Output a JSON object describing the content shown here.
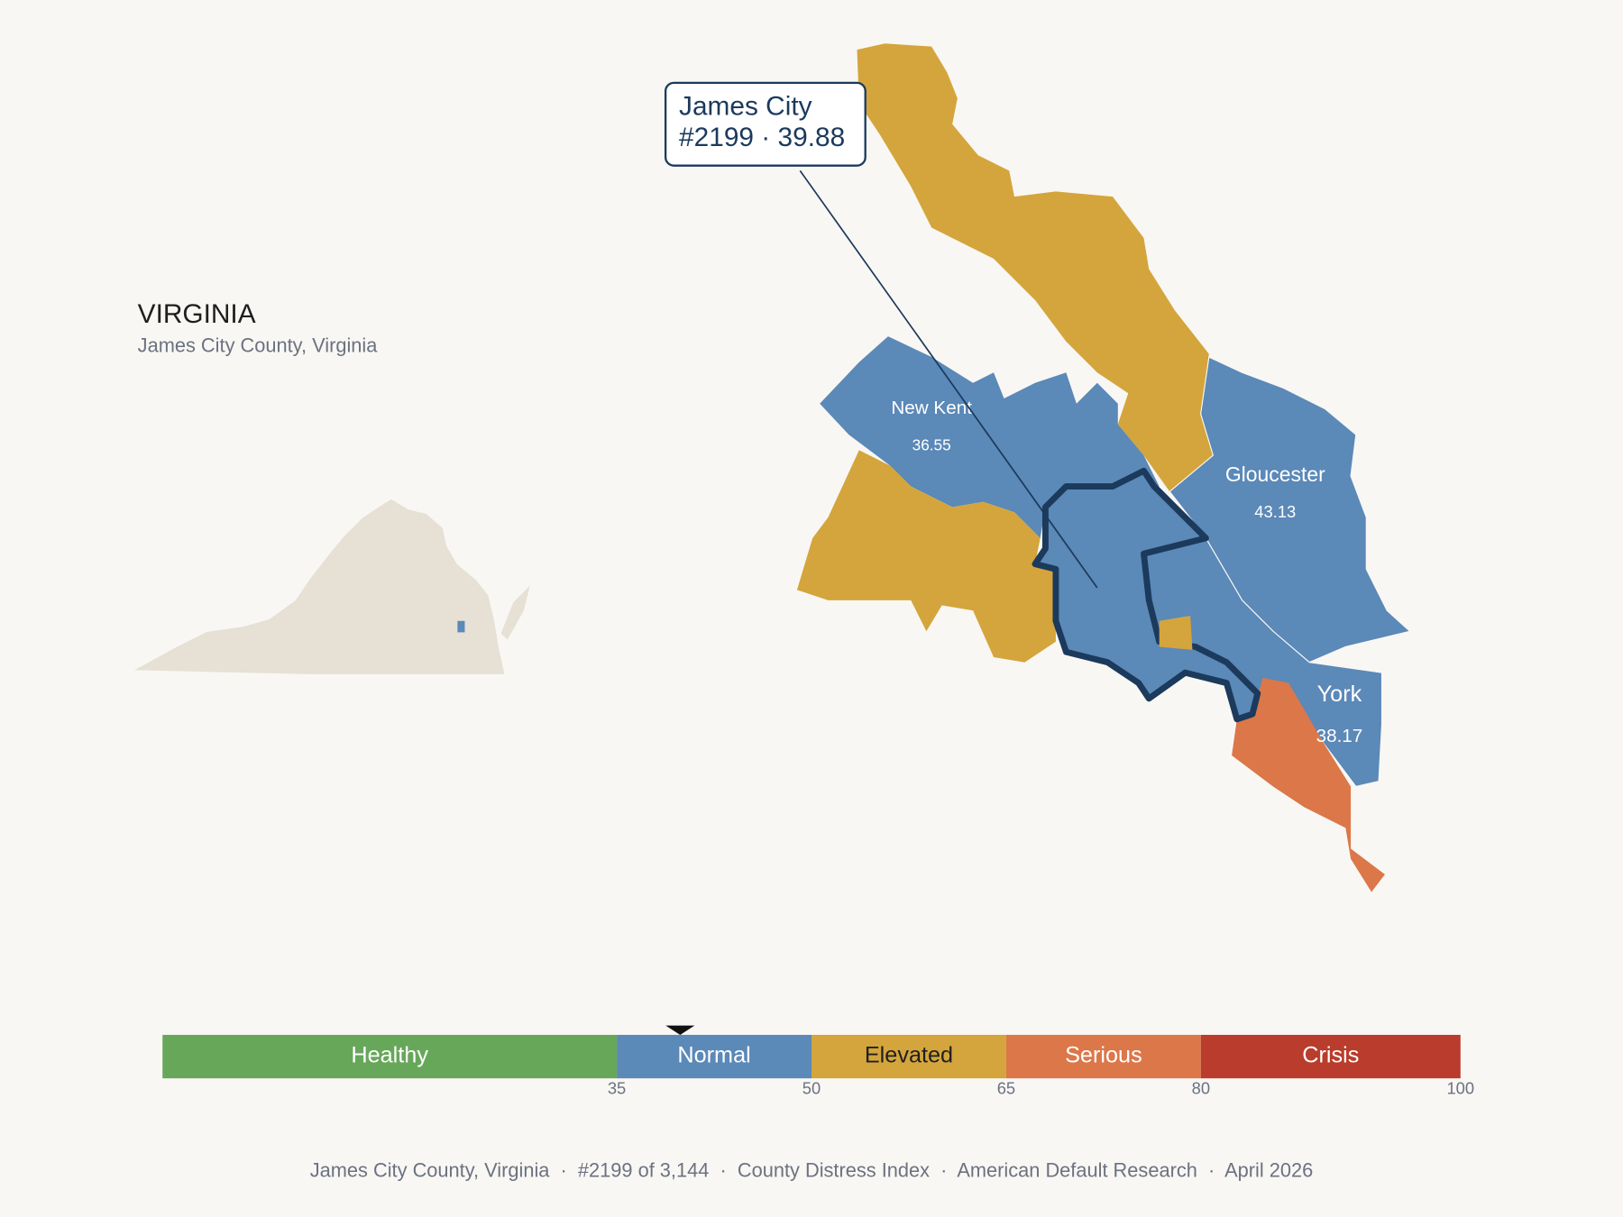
{
  "header": {
    "title": "VIRGINIA",
    "subtitle": "James City County, Virginia"
  },
  "callout": {
    "name": "James City",
    "rank": "#2199",
    "separator": "·",
    "score": 39.88
  },
  "counties": [
    {
      "name": "New Kent",
      "score": 36.55
    },
    {
      "name": "Gloucester",
      "score": 43.13
    },
    {
      "name": "York",
      "score": 38.17
    }
  ],
  "scale": {
    "xlim": [
      0,
      100
    ],
    "ticks": [
      35,
      50,
      65,
      80,
      100
    ],
    "bands": [
      {
        "label": "Healthy",
        "color": "#67a75a",
        "text_color": "#ffffff"
      },
      {
        "label": "Normal",
        "color": "#5b89b8",
        "text_color": "#ffffff"
      },
      {
        "label": "Elevated",
        "color": "#d4a53c",
        "text_color": "#1f1f1f"
      },
      {
        "label": "Serious",
        "color": "#dc7749",
        "text_color": "#ffffff"
      },
      {
        "label": "Crisis",
        "color": "#b93c2c",
        "text_color": "#ffffff"
      }
    ]
  },
  "footer": "James City County, Virginia  ·  #2199 of 3,144  ·  County Distress Index  ·  American Default Research  ·  April 2026"
}
